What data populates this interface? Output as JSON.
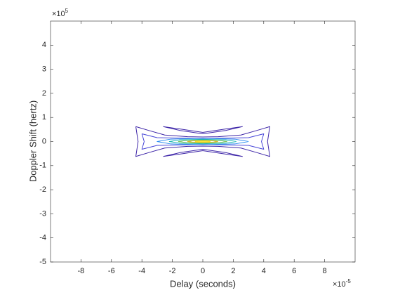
{
  "chart_data": {
    "type": "contour",
    "xlabel": "Delay (seconds)",
    "ylabel": "Doppler Shift (hertz)",
    "x_exponent": {
      "base": "×10",
      "power": "-5"
    },
    "y_exponent": {
      "base": "×10",
      "power": "5"
    },
    "xlim": [
      -10,
      10
    ],
    "ylim": [
      -5,
      5
    ],
    "xticks": [
      -8,
      -6,
      -4,
      -2,
      0,
      2,
      4,
      6,
      8
    ],
    "yticks": [
      -5,
      -4,
      -3,
      -2,
      -1,
      0,
      1,
      2,
      3,
      4
    ],
    "series": [
      {
        "color": "#3e26a8",
        "x": [
          -4.4,
          -3.5,
          -2.5,
          -1,
          0,
          1,
          2.5,
          3.5,
          4.4,
          4.25,
          4.4,
          3.5,
          2.5,
          1,
          0,
          -1,
          -2.5,
          -3.5,
          -4.4,
          -4.25,
          -4.4
        ],
        "y": [
          0.62,
          0.45,
          0.27,
          0.2,
          0.19,
          0.2,
          0.27,
          0.45,
          0.62,
          0,
          -0.62,
          -0.45,
          -0.27,
          -0.2,
          -0.19,
          -0.2,
          -0.27,
          -0.45,
          -0.62,
          0,
          0.62
        ]
      },
      {
        "color": "#3e26a8",
        "x": [
          -2.6,
          -1.5,
          0,
          1.5,
          2.6,
          1.5,
          0,
          -1.5,
          -2.6
        ],
        "y": [
          0.62,
          0.52,
          0.38,
          0.52,
          0.62,
          0.46,
          0.32,
          0.46,
          0.62
        ]
      },
      {
        "color": "#3e26a8",
        "x": [
          -2.6,
          -1.5,
          0,
          1.5,
          2.6,
          1.5,
          0,
          -1.5,
          -2.6
        ],
        "y": [
          -0.62,
          -0.52,
          -0.38,
          -0.52,
          -0.62,
          -0.46,
          -0.32,
          -0.46,
          -0.62
        ]
      },
      {
        "color": "#4746d8",
        "x": [
          -4,
          -3,
          0,
          3,
          4,
          3.85,
          4,
          3,
          0,
          -3,
          -4,
          -3.85,
          -4
        ],
        "y": [
          0.32,
          0.16,
          0.12,
          0.16,
          0.32,
          0,
          -0.32,
          -0.16,
          -0.12,
          -0.16,
          -0.32,
          0,
          0.32
        ]
      },
      {
        "color": "#2c8ef0",
        "x": [
          3,
          2.1,
          0,
          -2.1,
          -3,
          -2.1,
          0,
          2.1,
          3
        ],
        "y": [
          0,
          0.1,
          0.13,
          0.1,
          0,
          -0.1,
          -0.13,
          -0.1,
          0
        ]
      },
      {
        "color": "#18b5b0",
        "x": [
          2.2,
          1.5,
          0,
          -1.5,
          -2.2,
          -1.5,
          0,
          1.5,
          2.2
        ],
        "y": [
          0,
          0.07,
          0.09,
          0.07,
          0,
          -0.07,
          -0.09,
          -0.07,
          0
        ]
      },
      {
        "color": "#7cc55c",
        "x": [
          1.6,
          1.1,
          0,
          -1.1,
          -1.6,
          -1.1,
          0,
          1.1,
          1.6
        ],
        "y": [
          0,
          0.045,
          0.06,
          0.045,
          0,
          -0.045,
          -0.06,
          -0.045,
          0
        ]
      },
      {
        "color": "#d7ba2e",
        "x": [
          1,
          0.7,
          0,
          -0.7,
          -1,
          -0.7,
          0,
          0.7,
          1
        ],
        "y": [
          0,
          0.025,
          0.035,
          0.025,
          0,
          -0.025,
          -0.035,
          -0.025,
          0
        ]
      },
      {
        "color": "#f9e021",
        "x": [
          0.5,
          0.35,
          0,
          -0.35,
          -0.5,
          -0.35,
          0,
          0.35,
          0.5
        ],
        "y": [
          0,
          0.012,
          0.017,
          0.012,
          0,
          -0.012,
          -0.017,
          -0.012,
          0
        ]
      }
    ]
  }
}
